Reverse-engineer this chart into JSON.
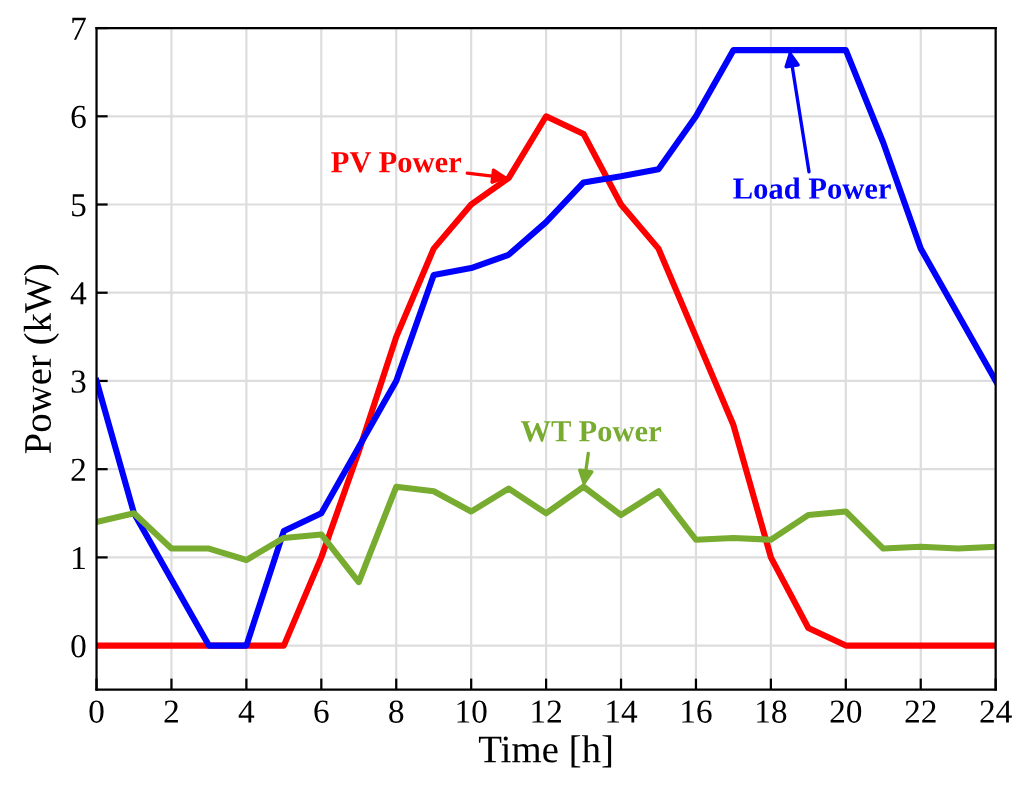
{
  "chart_data": {
    "type": "line",
    "xlabel": "Time [h]",
    "ylabel": "Power (kW)",
    "x": [
      0,
      1,
      2,
      3,
      4,
      5,
      6,
      7,
      8,
      9,
      10,
      11,
      12,
      13,
      14,
      15,
      16,
      17,
      18,
      19,
      20,
      21,
      22,
      23,
      24
    ],
    "series": [
      {
        "color": "#ff0000",
        "values": [
          0,
          0,
          0,
          0,
          0,
          0,
          1.0,
          2.2,
          3.5,
          4.5,
          5.0,
          5.3,
          6.0,
          5.8,
          5.0,
          4.5,
          3.5,
          2.5,
          1.0,
          0.2,
          0,
          0,
          0,
          0,
          0
        ]
      },
      {
        "color": "#0000ff",
        "values": [
          3.0,
          1.5,
          0.75,
          0,
          0,
          1.3,
          1.5,
          2.25,
          3.0,
          4.2,
          4.28,
          4.43,
          4.8,
          5.25,
          5.32,
          5.4,
          6.0,
          6.75,
          6.75,
          6.75,
          6.75,
          5.7,
          4.5,
          3.75,
          3.0
        ]
      },
      {
        "color": "#77ac30",
        "values": [
          1.4,
          1.5,
          1.1,
          1.1,
          0.97,
          1.22,
          1.26,
          0.72,
          1.8,
          1.75,
          1.52,
          1.78,
          1.5,
          1.8,
          1.48,
          1.75,
          1.2,
          1.22,
          1.2,
          1.48,
          1.52,
          1.1,
          1.12,
          1.1,
          1.12
        ]
      }
    ],
    "annotations": [
      {
        "text": "PV Power",
        "x": 11,
        "y": 5.3
      },
      {
        "text": "Load Power",
        "x": 18.5,
        "y": 6.75
      },
      {
        "text": "WT Power",
        "x": 13,
        "y": 1.8
      }
    ],
    "xlim": [
      0,
      24
    ],
    "xticks": [
      0,
      2,
      4,
      6,
      8,
      10,
      12,
      14,
      16,
      18,
      20,
      22,
      24
    ],
    "ylim": [
      -0.5,
      7
    ],
    "yticks": [
      0,
      1,
      2,
      3,
      4,
      5,
      6,
      7
    ],
    "grid": true,
    "legend": false,
    "marker": "none",
    "line_style": "solid"
  }
}
